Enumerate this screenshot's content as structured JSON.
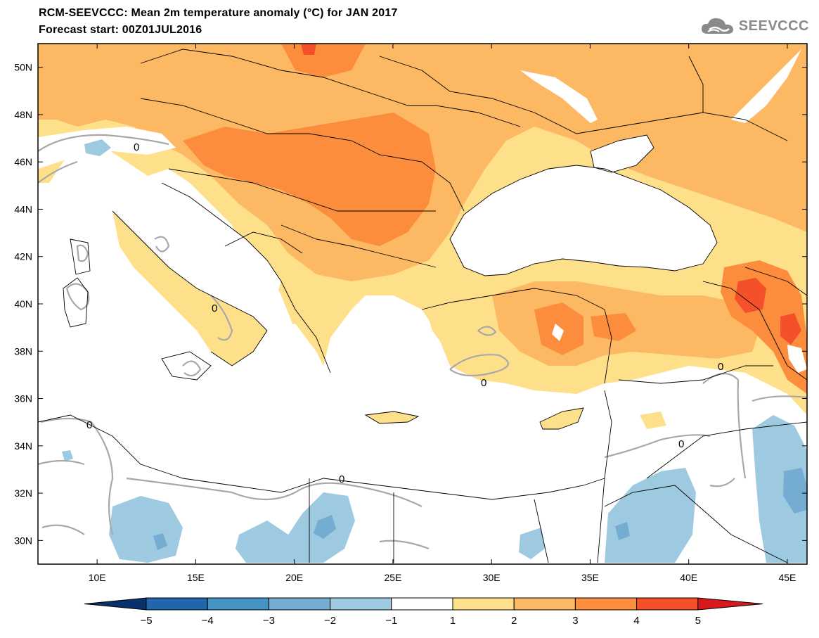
{
  "title_line1": "RCM-SEEVCCC: Mean 2m temperature anomaly (°C) for JAN 2017",
  "title_line2": "Forecast start: 00Z01JUL2016",
  "logo_text": "SEEVCCC",
  "lon_labels": [
    "10E",
    "15E",
    "20E",
    "25E",
    "30E",
    "35E",
    "40E",
    "45E"
  ],
  "lat_labels": [
    "50N",
    "48N",
    "46N",
    "44N",
    "42N",
    "40N",
    "38N",
    "36N",
    "34N",
    "32N",
    "30N"
  ],
  "colorbar": {
    "ticks": [
      "−5",
      "−4",
      "−3",
      "−2",
      "−1",
      "1",
      "2",
      "3",
      "4",
      "5"
    ],
    "colors": {
      "lt_minus5": "#08306b",
      "m5_m4": "#2166ac",
      "m4_m3": "#4393c3",
      "m3_m2": "#74add1",
      "m2_m1": "#9ecae1",
      "m1_1": "#ffffff",
      "p1_2": "#fee08b",
      "p2_3": "#fdb863",
      "p3_4": "#fc8d3c",
      "p4_5": "#f4502a",
      "gt_5": "#d7191c"
    }
  },
  "contour_label": "0",
  "map_extent": {
    "lon_min": 7,
    "lon_max": 46,
    "lat_min": 29,
    "lat_max": 51
  },
  "colors": {
    "land_warm": "#fdb863",
    "land_light": "#fee08b",
    "hot": "#fc8d3c",
    "red": "#f4502a",
    "cold": "#9ecae1",
    "cold_dark": "#74add1",
    "zero_contour": "#a8a8a8"
  }
}
